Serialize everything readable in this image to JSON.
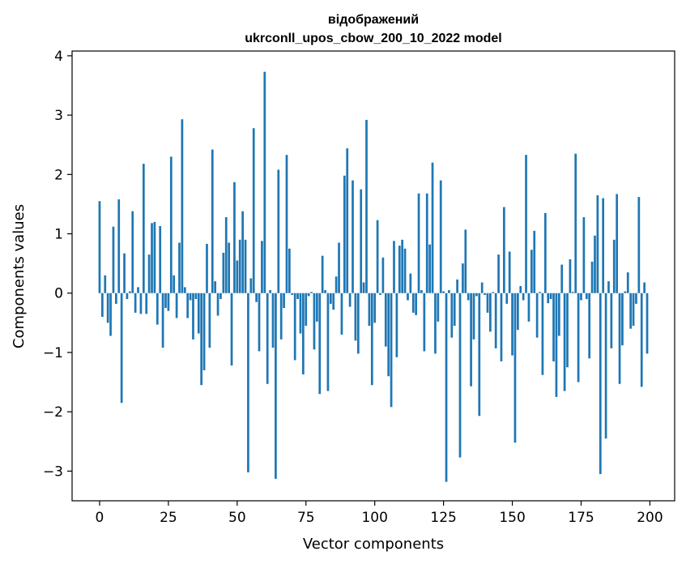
{
  "chart_data": {
    "type": "bar",
    "title": "відображений",
    "subtitle": "ukrconll_upos_cbow_200_10_2022 model",
    "xlabel": "Vector components",
    "ylabel": "Components values",
    "xlim": [
      -10,
      209
    ],
    "ylim": [
      -3.5,
      4.08
    ],
    "xticks": [
      0,
      25,
      50,
      75,
      100,
      125,
      150,
      175,
      200
    ],
    "yticks": [
      -3,
      -2,
      -1,
      0,
      1,
      2,
      3,
      4
    ],
    "xtick_labels": [
      "0",
      "25",
      "50",
      "75",
      "100",
      "125",
      "150",
      "175",
      "200"
    ],
    "ytick_labels": [
      "−3",
      "−2",
      "−1",
      "0",
      "1",
      "2",
      "3",
      "4"
    ],
    "bar_color": "#1f77b4",
    "values": [
      1.55,
      -0.4,
      0.3,
      -0.5,
      -0.72,
      1.12,
      -0.18,
      1.58,
      -1.85,
      0.67,
      -0.1,
      0.03,
      1.38,
      -0.33,
      0.1,
      -0.35,
      2.18,
      -0.35,
      0.65,
      1.18,
      1.2,
      -0.53,
      1.13,
      -0.92,
      -0.25,
      -0.3,
      2.3,
      0.3,
      -0.42,
      0.85,
      2.93,
      0.1,
      -0.42,
      -0.12,
      -0.78,
      -0.1,
      -0.68,
      -1.55,
      -1.3,
      0.83,
      -0.92,
      2.42,
      0.2,
      -0.38,
      -0.1,
      0.68,
      1.28,
      0.85,
      -1.22,
      1.87,
      0.55,
      0.9,
      1.38,
      0.9,
      -3.02,
      0.25,
      2.78,
      -0.15,
      -0.98,
      0.88,
      3.73,
      -1.53,
      0.05,
      -0.92,
      -3.13,
      2.08,
      -0.78,
      -0.25,
      2.33,
      0.75,
      -0.03,
      -1.13,
      -0.1,
      -0.68,
      -1.37,
      -0.55,
      -0.05,
      0.02,
      -0.95,
      -0.48,
      -1.7,
      0.63,
      0.05,
      -1.65,
      -0.18,
      -0.28,
      0.28,
      0.85,
      -0.7,
      1.98,
      2.44,
      -0.23,
      1.9,
      -0.8,
      -1.02,
      1.75,
      0.18,
      2.92,
      -0.55,
      -1.55,
      -0.5,
      1.23,
      -0.03,
      0.6,
      -0.9,
      -1.4,
      -1.92,
      0.88,
      -1.08,
      0.8,
      0.9,
      0.75,
      -0.12,
      0.33,
      -0.33,
      -0.37,
      1.68,
      0.05,
      -0.98,
      1.68,
      0.82,
      2.2,
      -1.02,
      -0.48,
      1.9,
      0.03,
      -3.18,
      0.05,
      -0.75,
      -0.55,
      0.23,
      -2.77,
      0.5,
      1.07,
      -0.12,
      -1.57,
      -0.78,
      -0.05,
      -2.07,
      0.18,
      -0.03,
      -0.33,
      -0.65,
      0.02,
      -0.93,
      0.65,
      -1.15,
      1.45,
      -0.18,
      0.7,
      -1.05,
      -2.52,
      -0.62,
      0.12,
      -0.12,
      2.33,
      -0.48,
      0.73,
      1.05,
      -0.75,
      0.02,
      -1.38,
      1.35,
      -0.17,
      -0.1,
      -1.15,
      -1.75,
      -0.72,
      0.48,
      -1.65,
      -1.25,
      0.57,
      0.02,
      2.35,
      -1.5,
      -0.12,
      1.28,
      -0.1,
      -1.1,
      0.53,
      0.97,
      1.65,
      -3.05,
      1.6,
      -2.45,
      0.2,
      -0.93,
      0.9,
      1.67,
      -1.53,
      -0.88,
      0.03,
      0.35,
      -0.6,
      -0.55,
      -0.18,
      1.62,
      -1.58,
      0.18,
      -1.02
    ]
  }
}
